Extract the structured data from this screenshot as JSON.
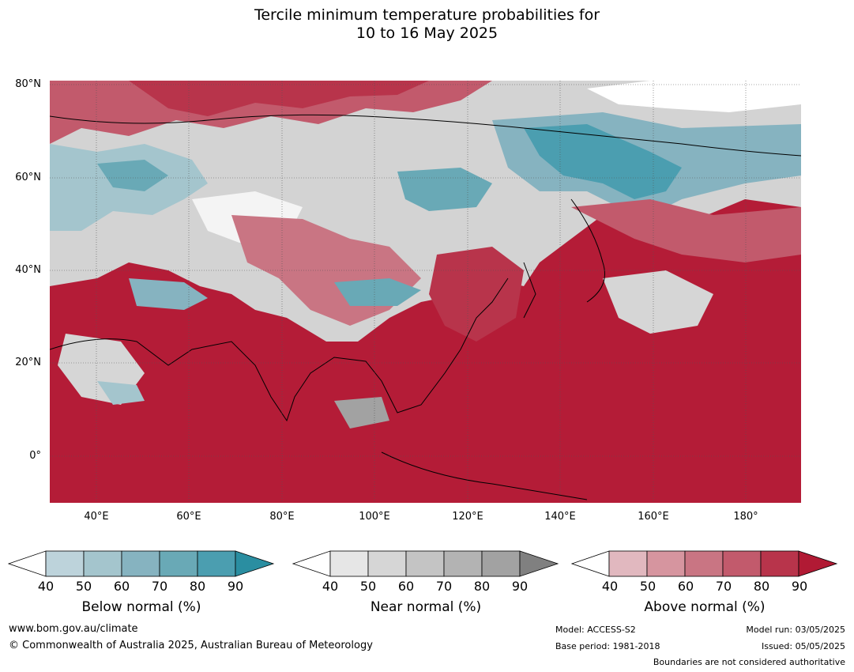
{
  "title_line1": "Tercile minimum temperature probabilities for",
  "title_line2": "10 to 16 May 2025",
  "map": {
    "lat_labels": [
      "80°N",
      "60°N",
      "40°N",
      "20°N",
      "0°"
    ],
    "lon_labels": [
      "40°E",
      "60°E",
      "80°E",
      "100°E",
      "120°E",
      "140°E",
      "160°E",
      "180°"
    ],
    "ocean_color": "#b41c37"
  },
  "legends": {
    "below": {
      "title": "Below normal (%)",
      "ticks": [
        "40",
        "50",
        "60",
        "70",
        "80",
        "90"
      ],
      "colors": [
        "#ffffff",
        "#bdd3db",
        "#a4c5cd",
        "#86b3c0",
        "#69a9b6",
        "#4b9eb0",
        "#2a8ea1"
      ]
    },
    "near": {
      "title": "Near normal (%)",
      "ticks": [
        "40",
        "50",
        "60",
        "70",
        "80",
        "90"
      ],
      "colors": [
        "#ffffff",
        "#e6e6e6",
        "#d6d6d6",
        "#c4c4c4",
        "#b3b3b3",
        "#a2a2a2",
        "#808080"
      ]
    },
    "above": {
      "title": "Above normal (%)",
      "ticks": [
        "40",
        "50",
        "60",
        "70",
        "80",
        "90"
      ],
      "colors": [
        "#ffffff",
        "#e1b8bf",
        "#d6959f",
        "#c97583",
        "#c25a6c",
        "#b8344b",
        "#b11a34"
      ]
    }
  },
  "footer": {
    "website": "www.bom.gov.au/climate",
    "copyright": "© Commonwealth of Australia 2025, Australian Bureau of Meteorology",
    "model": "Model: ACCESS-S2",
    "base_period": "Base period: 1981-2018",
    "model_run": "Model run: 03/05/2025",
    "issued": "Issued: 05/05/2025",
    "boundaries_note": "Boundaries are not considered authoritative"
  }
}
